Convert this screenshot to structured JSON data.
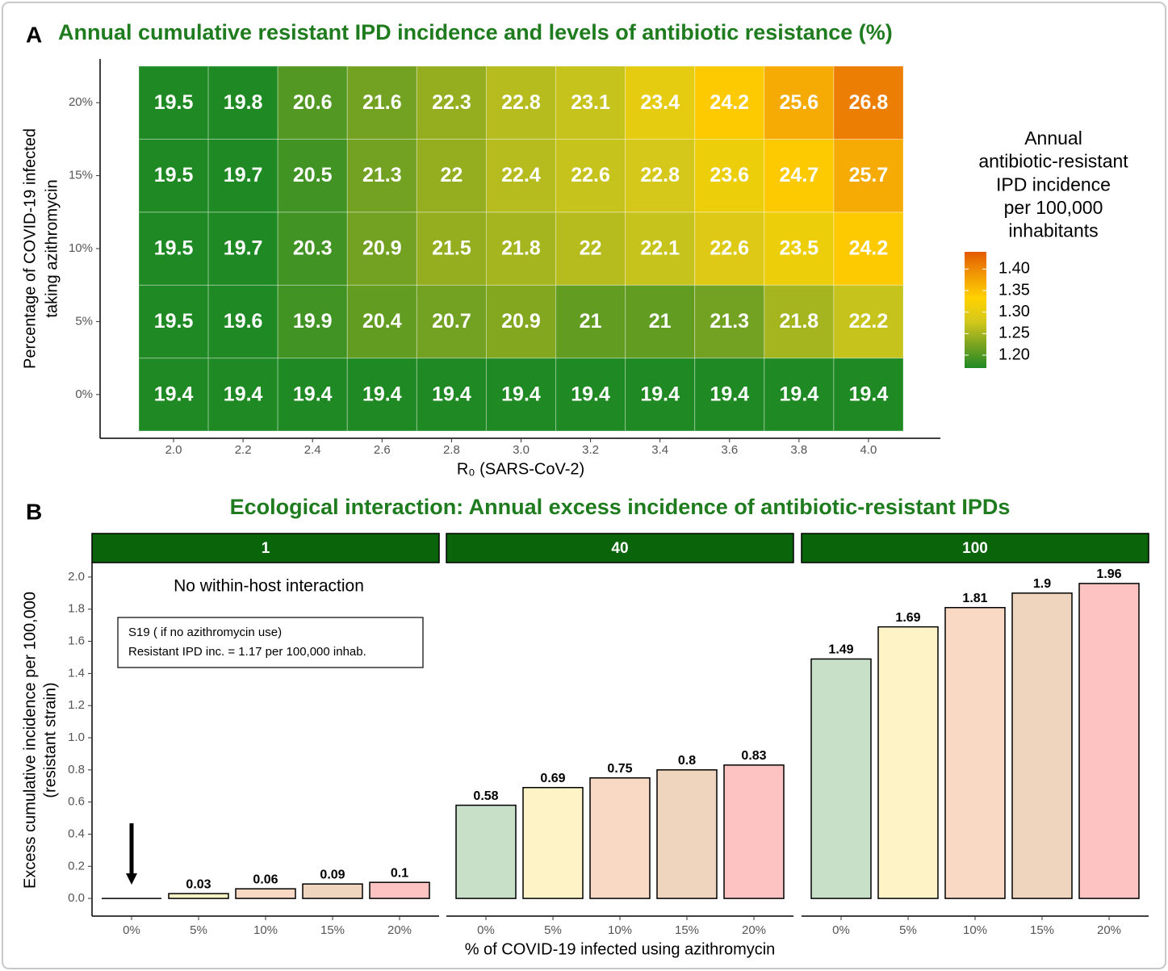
{
  "chart_data": [
    {
      "type": "heatmap",
      "panel_label": "A",
      "title": "Annual cumulative resistant IPD incidence and levels of antibiotic resistance (%)",
      "x": [
        "2.0",
        "2.2",
        "2.4",
        "2.6",
        "2.8",
        "3.0",
        "3.2",
        "3.4",
        "3.6",
        "3.8",
        "4.0"
      ],
      "y": [
        "0%",
        "5%",
        "10%",
        "15%",
        "20%"
      ],
      "x_label": "R₀ (SARS-CoV-2)",
      "y_label": [
        "Percentage of COVID-19 infected",
        "taking azithromycin"
      ],
      "values": [
        [
          1.17,
          1.17,
          1.17,
          1.17,
          1.17,
          1.17,
          1.17,
          1.17,
          1.17,
          1.17,
          1.17
        ],
        [
          1.17,
          1.17,
          1.19,
          1.21,
          1.22,
          1.23,
          1.21,
          1.21,
          1.22,
          1.25,
          1.27
        ],
        [
          1.17,
          1.17,
          1.19,
          1.22,
          1.24,
          1.25,
          1.26,
          1.27,
          1.29,
          1.31,
          1.34
        ],
        [
          1.17,
          1.17,
          1.19,
          1.22,
          1.24,
          1.26,
          1.27,
          1.28,
          1.31,
          1.34,
          1.37
        ],
        [
          1.17,
          1.17,
          1.2,
          1.22,
          1.24,
          1.26,
          1.27,
          1.3,
          1.34,
          1.37,
          1.41
        ]
      ],
      "cell_labels": [
        [
          19.4,
          19.4,
          19.4,
          19.4,
          19.4,
          19.4,
          19.4,
          19.4,
          19.4,
          19.4,
          19.4
        ],
        [
          19.5,
          19.6,
          19.9,
          20.4,
          20.7,
          20.9,
          21,
          21,
          21.3,
          21.8,
          22.2
        ],
        [
          19.5,
          19.7,
          20.3,
          20.9,
          21.5,
          21.8,
          22,
          22.1,
          22.6,
          23.5,
          24.2
        ],
        [
          19.5,
          19.7,
          20.5,
          21.3,
          22,
          22.4,
          22.6,
          22.8,
          23.6,
          24.7,
          25.7
        ],
        [
          19.5,
          19.8,
          20.6,
          21.6,
          22.3,
          22.8,
          23.1,
          23.4,
          24.2,
          25.6,
          26.8
        ]
      ],
      "legend_title": [
        "Annual",
        "antibiotic-resistant",
        "IPD incidence",
        "per 100,000",
        "inhabitants"
      ],
      "clim": [
        1.17,
        1.44
      ],
      "cticks": [
        {
          "value": 1.2,
          "label": "1.20"
        },
        1.25,
        {
          "value": 1.3,
          "label": "1.30"
        },
        1.35,
        {
          "value": 1.4,
          "label": "1.40"
        }
      ],
      "colorscale": [
        "#1f8a24",
        "#7aa321",
        "#d4c81c",
        "#ffd200",
        "#f29a05",
        "#e35a00"
      ]
    },
    {
      "type": "bar",
      "panel_label": "B",
      "title": "Ecological interaction: Annual excess incidence of antibiotic-resistant IPDs",
      "categories": [
        "0%",
        "5%",
        "10%",
        "15%",
        "20%"
      ],
      "colors": [
        "#c8e0c8",
        "#fdf3c6",
        "#f9d9c4",
        "#f0d5be",
        "#fdc3c3"
      ],
      "facets": [
        {
          "name": "1",
          "values": [
            0,
            0.03,
            0.06,
            0.09,
            0.1
          ],
          "value_labels": [
            null,
            "0.03",
            "0.06",
            "0.09",
            "0.1"
          ]
        },
        {
          "name": "40",
          "values": [
            0.58,
            0.69,
            0.75,
            0.8,
            0.83
          ]
        },
        {
          "name": "100",
          "values": [
            1.49,
            1.69,
            1.81,
            1.9,
            1.96
          ]
        }
      ],
      "ylim": [
        -0.11,
        2.09
      ],
      "yticks": [
        {
          "value": 0,
          "label": "0.0"
        },
        0.2,
        0.4,
        0.6,
        0.8,
        {
          "value": 1,
          "label": "1.0"
        },
        1.2,
        1.4,
        1.6,
        1.8,
        {
          "value": 2,
          "label": "2.0"
        }
      ],
      "x_label": "% of COVID-19 infected using azithromycin",
      "y_label": [
        "Excess cumulative incidence per 100,000",
        "(resistant strain)"
      ],
      "note": "No within-host interaction",
      "box": [
        "S19 ( if no azithromycin use)",
        "Resistant IPD inc. = 1.17 per 100,000 inhab."
      ]
    }
  ]
}
